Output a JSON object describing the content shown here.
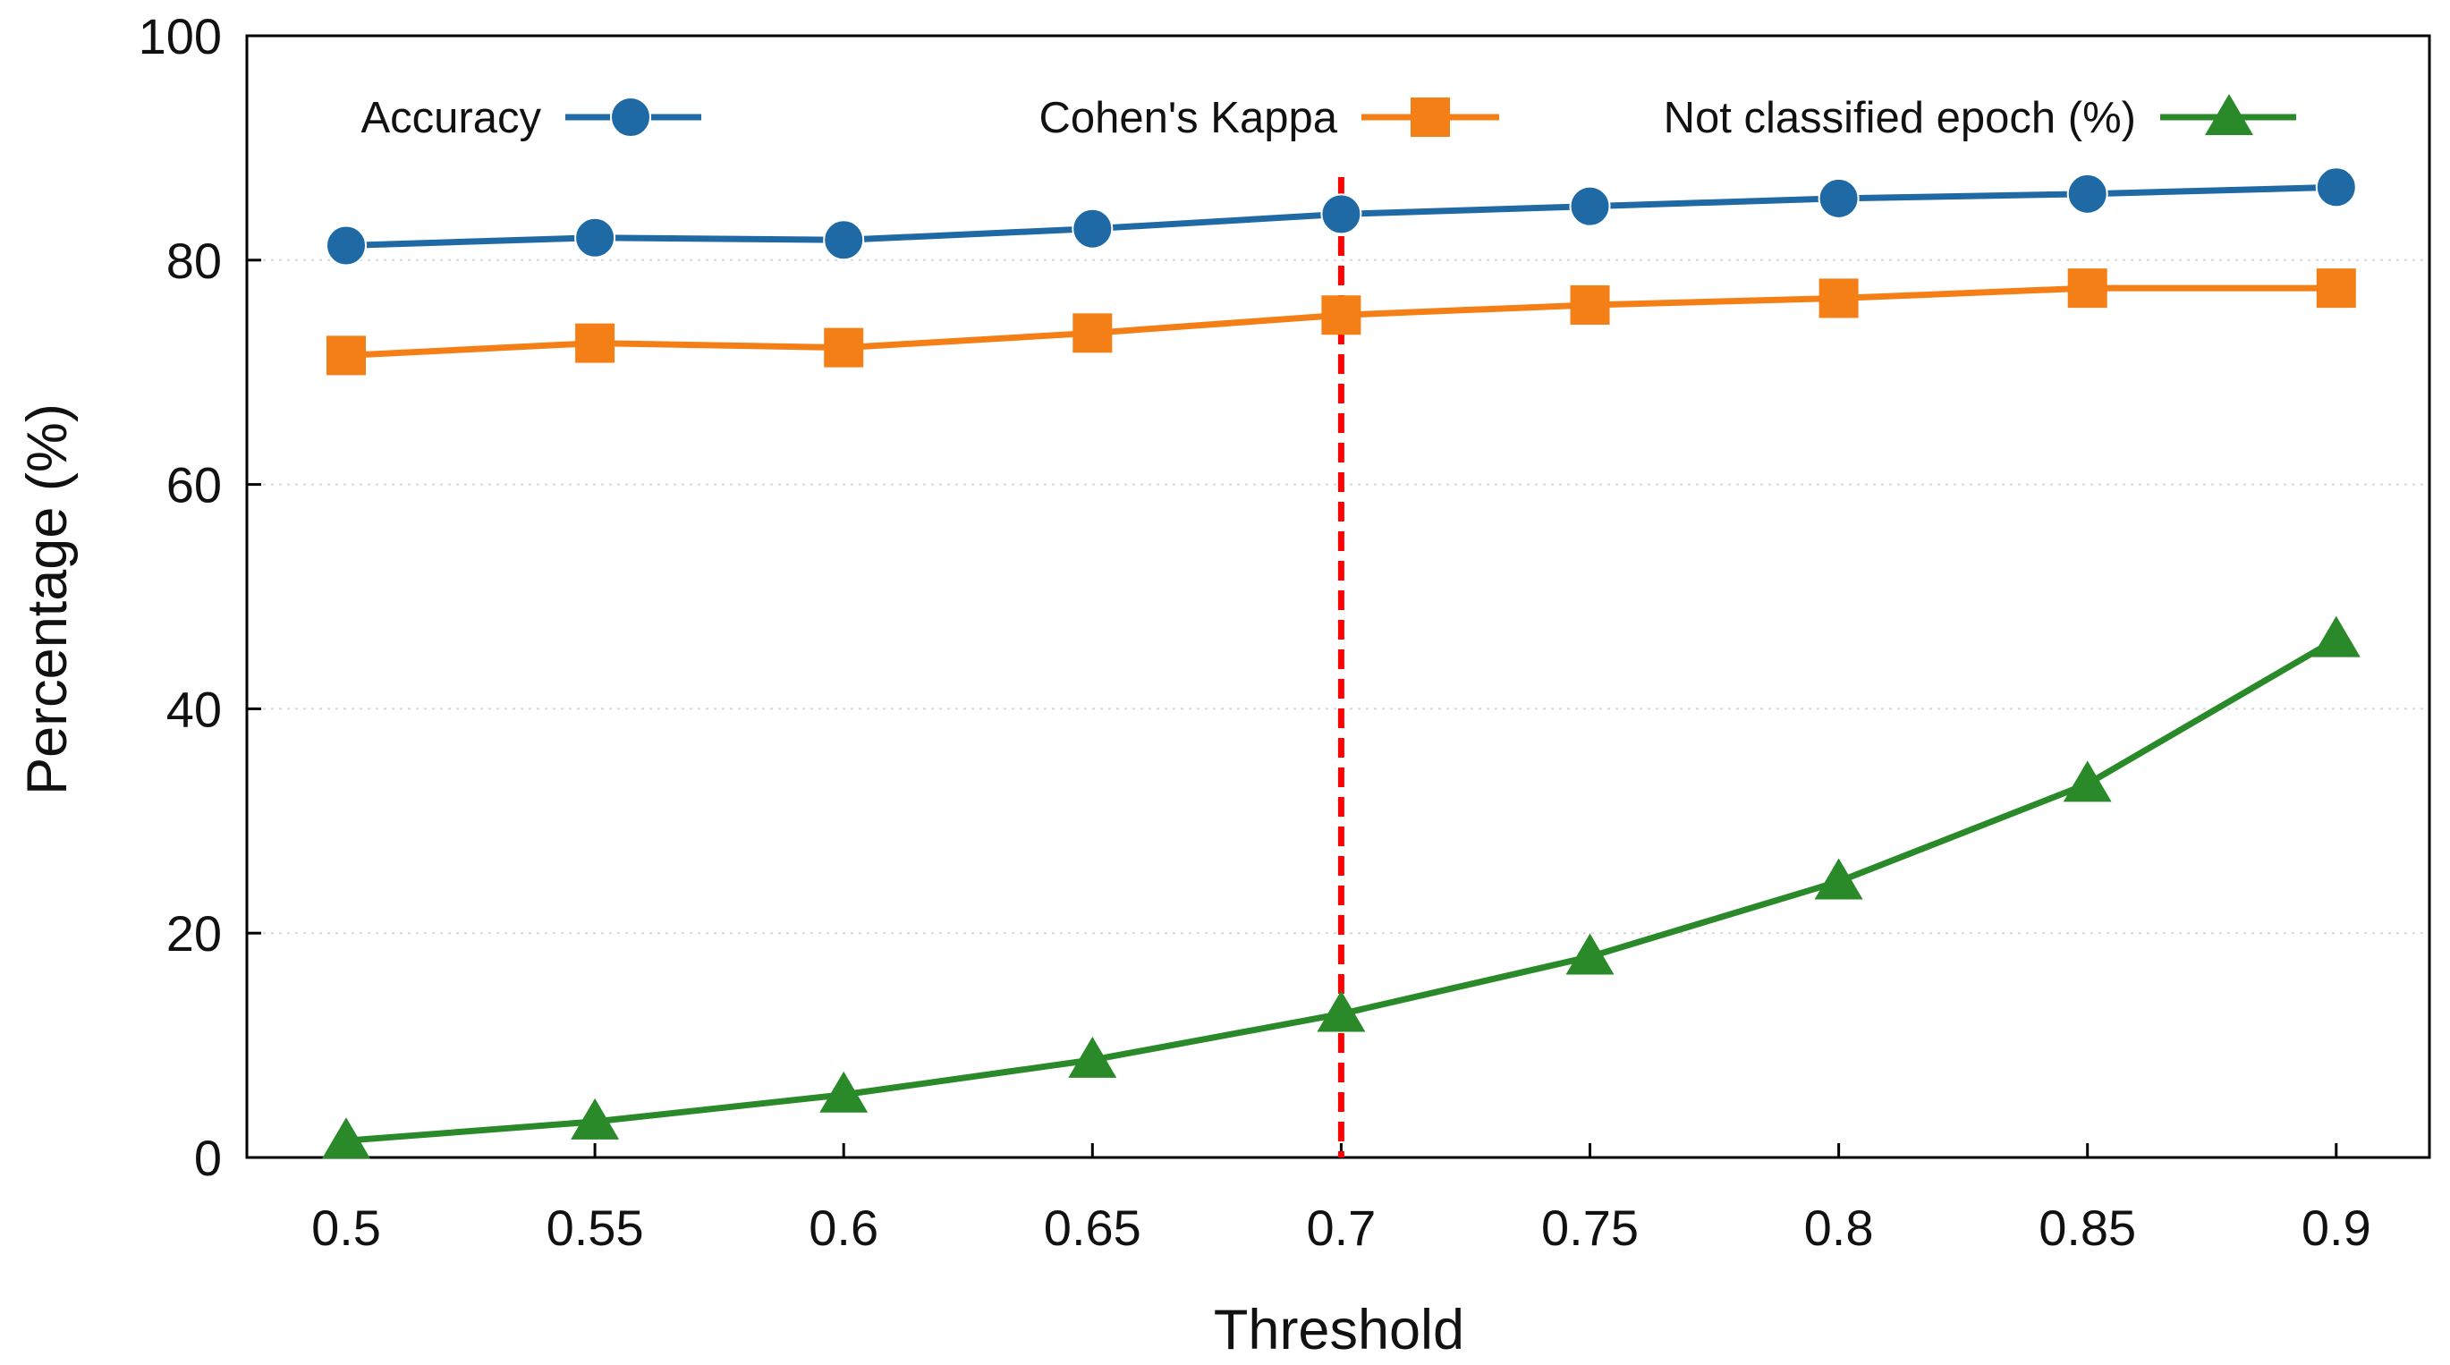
{
  "chart_data": {
    "type": "line",
    "title": "",
    "xlabel": "Threshold",
    "ylabel": "Percentage (%)",
    "x": [
      0.5,
      0.55,
      0.6,
      0.65,
      0.7,
      0.75,
      0.8,
      0.85,
      0.9
    ],
    "x_tick_labels": [
      "0.5",
      "0.55",
      "0.6",
      "0.65",
      "0.7",
      "0.75",
      "0.8",
      "0.85",
      "0.9"
    ],
    "y_ticks": [
      0,
      20,
      40,
      60,
      80,
      100
    ],
    "y_tick_labels": [
      "0",
      "20",
      "40",
      "60",
      "80",
      "100"
    ],
    "ylim": [
      0,
      100
    ],
    "grid": "horizontal-dotted",
    "legend_position": "top",
    "series": [
      {
        "name": "Accuracy",
        "color": "#1f6aa5",
        "marker": "circle",
        "values": [
          81.3,
          82.0,
          81.8,
          82.8,
          84.1,
          84.8,
          85.5,
          85.9,
          86.5
        ]
      },
      {
        "name": "Cohen's Kappa",
        "color": "#f57f17",
        "marker": "square",
        "values": [
          71.5,
          72.6,
          72.2,
          73.5,
          75.1,
          76.0,
          76.6,
          77.5,
          77.5
        ]
      },
      {
        "name": "Not classified epoch (%)",
        "color": "#2a8a2a",
        "marker": "triangle",
        "values": [
          1.5,
          3.2,
          5.6,
          8.7,
          12.8,
          17.9,
          24.6,
          33.3,
          46.2
        ]
      }
    ],
    "reference_line": {
      "x": 0.7,
      "style": "dashed",
      "color": "#ff0000"
    }
  }
}
